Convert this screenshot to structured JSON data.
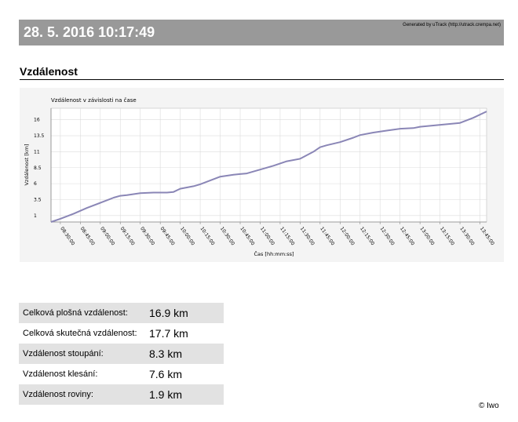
{
  "header": {
    "datetime": "28. 5. 2016 10:17:49",
    "generated_by": "Generated by uTrack (http://utrack.crempa.net)"
  },
  "section": {
    "title": "Vzdálenost"
  },
  "chart_data": {
    "type": "line",
    "title": "Vzdálenost v závislosti na čase",
    "xlabel": "Čas [hh:mm:ss]",
    "ylabel": "Vzdálenost [km]",
    "ylim": [
      0,
      17.8
    ],
    "yticks": [
      1,
      3.5,
      6,
      8.5,
      11,
      13.5,
      16
    ],
    "yticklabels": [
      "1",
      "3.5",
      "6",
      "8.5",
      "11",
      "13.5",
      "16"
    ],
    "xlim": [
      "08:23:00",
      "13:50:00"
    ],
    "xticklabels": [
      "08:30:00",
      "08:45:00",
      "09:00:00",
      "09:15:00",
      "09:30:00",
      "09:45:00",
      "10:00:00",
      "10:15:00",
      "10:30:00",
      "10:45:00",
      "11:00:00",
      "11:15:00",
      "11:30:00",
      "11:45:00",
      "12:00:00",
      "12:15:00",
      "12:30:00",
      "12:45:00",
      "13:00:00",
      "13:15:00",
      "13:30:00",
      "13:45:00"
    ],
    "grid": true,
    "series": [
      {
        "color": "#8a86b6",
        "x": [
          "08:23:00",
          "08:30:00",
          "08:40:00",
          "08:50:00",
          "09:00:00",
          "09:10:00",
          "09:15:00",
          "09:20:00",
          "09:30:00",
          "09:40:00",
          "09:50:00",
          "09:55:00",
          "10:00:00",
          "10:10:00",
          "10:15:00",
          "10:20:00",
          "10:30:00",
          "10:40:00",
          "10:45:00",
          "10:50:00",
          "11:00:00",
          "11:10:00",
          "11:20:00",
          "11:30:00",
          "11:40:00",
          "11:45:00",
          "11:50:00",
          "12:00:00",
          "12:10:00",
          "12:15:00",
          "12:25:00",
          "12:35:00",
          "12:45:00",
          "12:55:00",
          "13:00:00",
          "13:10:00",
          "13:20:00",
          "13:30:00",
          "13:40:00",
          "13:50:00"
        ],
        "y": [
          0,
          0.5,
          1.3,
          2.2,
          3.0,
          3.8,
          4.1,
          4.2,
          4.5,
          4.6,
          4.6,
          4.7,
          5.2,
          5.6,
          5.9,
          6.3,
          7.1,
          7.4,
          7.5,
          7.6,
          8.2,
          8.8,
          9.5,
          9.9,
          11.0,
          11.7,
          12.0,
          12.5,
          13.2,
          13.6,
          14.0,
          14.3,
          14.6,
          14.7,
          14.9,
          15.1,
          15.3,
          15.5,
          16.3,
          17.3
        ]
      }
    ]
  },
  "stats": [
    {
      "label": "Celková plošná vzdálenost:",
      "value": "16.9 km"
    },
    {
      "label": "Celková skutečná vzdálenost:",
      "value": "17.7 km"
    },
    {
      "label": "Vzdálenost stoupání:",
      "value": "8.3 km"
    },
    {
      "label": "Vzdálenost klesání:",
      "value": "7.6 km"
    },
    {
      "label": "Vzdálenost roviny:",
      "value": "1.9 km"
    }
  ],
  "footer": {
    "copyright": "© Iwo"
  }
}
